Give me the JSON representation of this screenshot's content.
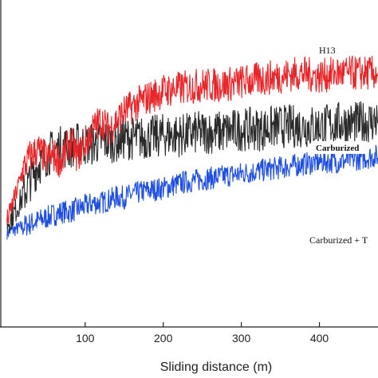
{
  "chart_data": {
    "type": "line",
    "xlabel": "Sliding distance (m)",
    "ylabel": "",
    "title": "",
    "xlim": [
      -8,
      475
    ],
    "ylim": [
      0,
      1
    ],
    "x_ticks": [
      100,
      200,
      300,
      400
    ],
    "grid": false,
    "legend": "none",
    "series": [
      {
        "name": "H13",
        "color": "#e8262a",
        "x": [
          0,
          10,
          20,
          30,
          40,
          50,
          60,
          70,
          80,
          90,
          100,
          110,
          120,
          130,
          140,
          150,
          175,
          200,
          225,
          250,
          275,
          300,
          325,
          350,
          375,
          400,
          425,
          450,
          475
        ],
        "values": [
          0.36,
          0.44,
          0.53,
          0.58,
          0.6,
          0.57,
          0.58,
          0.56,
          0.63,
          0.58,
          0.62,
          0.67,
          0.7,
          0.67,
          0.7,
          0.73,
          0.77,
          0.8,
          0.81,
          0.82,
          0.82,
          0.83,
          0.84,
          0.85,
          0.86,
          0.85,
          0.86,
          0.86,
          0.86
        ]
      },
      {
        "name": "Carburized",
        "color": "#2a2a2a",
        "x": [
          0,
          10,
          20,
          30,
          40,
          50,
          60,
          70,
          80,
          90,
          100,
          110,
          120,
          130,
          140,
          150,
          175,
          200,
          225,
          250,
          275,
          300,
          325,
          350,
          375,
          400,
          425,
          450,
          475
        ],
        "values": [
          0.35,
          0.39,
          0.44,
          0.5,
          0.55,
          0.58,
          0.6,
          0.61,
          0.61,
          0.62,
          0.62,
          0.62,
          0.63,
          0.63,
          0.63,
          0.64,
          0.64,
          0.65,
          0.65,
          0.66,
          0.66,
          0.67,
          0.67,
          0.68,
          0.68,
          0.68,
          0.69,
          0.69,
          0.7
        ]
      },
      {
        "name": "Carburized + T",
        "color": "#1f4fe0",
        "x": [
          0,
          10,
          20,
          30,
          40,
          50,
          60,
          70,
          80,
          90,
          100,
          110,
          120,
          130,
          140,
          150,
          175,
          200,
          225,
          250,
          275,
          300,
          325,
          350,
          375,
          400,
          425,
          450,
          475
        ],
        "values": [
          0.32,
          0.33,
          0.34,
          0.35,
          0.36,
          0.37,
          0.38,
          0.39,
          0.39,
          0.4,
          0.41,
          0.42,
          0.42,
          0.43,
          0.44,
          0.44,
          0.46,
          0.47,
          0.49,
          0.5,
          0.51,
          0.52,
          0.53,
          0.54,
          0.55,
          0.56,
          0.56,
          0.57,
          0.58
        ]
      }
    ],
    "annotations": [
      {
        "text": "H13",
        "series": 0,
        "x": 405
      },
      {
        "text": "Carburized",
        "series": 1,
        "x": 410
      },
      {
        "text": "Carburized + T",
        "series": 2,
        "x": 440
      }
    ]
  }
}
